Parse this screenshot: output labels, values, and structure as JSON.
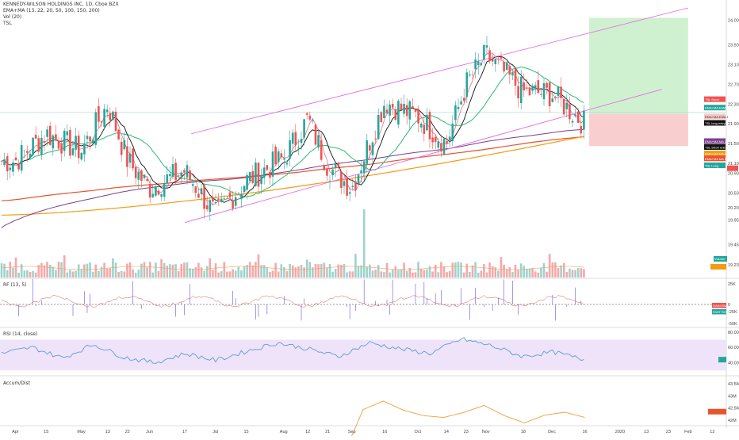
{
  "header": {
    "title": "KENNEDY-WILSON HOLDINGS INC, 1D, Cboe BZX",
    "ema_line": "EMA+MA (13, 22, 20, 50, 100, 150, 200)",
    "vol_line": "Vol (20)",
    "tsl_line": "TSL"
  },
  "panes": {
    "rf_label": "RF (13, 5)",
    "rsi_label": "RSI (14, close)",
    "ad_label": "Accum/Dist"
  },
  "colors": {
    "up": "#26a69a",
    "down": "#ef5350",
    "ema13": "#e0607a",
    "ema22": "#111111",
    "ma50": "#2eb87a",
    "ma100": "#7b3f8c",
    "ma150": "#f39c12",
    "ma200": "#e8522c",
    "channel": "#e36be6",
    "rsi": "#5b9bd5",
    "ad": "#f39c3c",
    "long_target": "#c8eec8",
    "long_stop": "#f8c6c6"
  },
  "chart_data": [
    {
      "type": "candlestick",
      "title": "KENNEDY-WILSON HOLDINGS INC, 1D, Cboe BZX",
      "x_tick_labels": [
        "Apr",
        "15",
        "May",
        "13",
        "22",
        "Jun",
        "17",
        "Jul",
        "15",
        "Aug",
        "12",
        "21",
        "Sep",
        "16",
        "Oct",
        "14",
        "23",
        "Nov",
        "18",
        "Dec",
        "16",
        "2020",
        "13",
        "23",
        "Feb",
        "12"
      ],
      "y_tick_labels": [
        "24.00",
        "23.50",
        "23.10",
        "22.70",
        "22.30",
        "21.90",
        "21.50",
        "21.10",
        "20.90",
        "20.50",
        "20.20",
        "19.95",
        "19.45",
        "19.23"
      ],
      "ylim": [
        19.3,
        24.25
      ],
      "price_series": [
        {
          "date": "2019-04-01",
          "close": 21.15
        },
        {
          "date": "2019-04-15",
          "close": 21.7
        },
        {
          "date": "2019-05-01",
          "close": 21.35
        },
        {
          "date": "2019-05-13",
          "close": 22.3
        },
        {
          "date": "2019-05-22",
          "close": 21.15
        },
        {
          "date": "2019-06-01",
          "close": 20.6
        },
        {
          "date": "2019-06-17",
          "close": 20.95
        },
        {
          "date": "2019-07-01",
          "close": 20.05
        },
        {
          "date": "2019-07-15",
          "close": 20.75
        },
        {
          "date": "2019-08-01",
          "close": 21.2
        },
        {
          "date": "2019-08-12",
          "close": 22.0
        },
        {
          "date": "2019-08-21",
          "close": 21.05
        },
        {
          "date": "2019-09-01",
          "close": 20.6
        },
        {
          "date": "2019-09-16",
          "close": 22.35
        },
        {
          "date": "2019-10-01",
          "close": 22.05
        },
        {
          "date": "2019-10-14",
          "close": 21.5
        },
        {
          "date": "2019-10-23",
          "close": 22.7
        },
        {
          "date": "2019-11-01",
          "close": 23.3
        },
        {
          "date": "2019-11-18",
          "close": 22.55
        },
        {
          "date": "2019-12-01",
          "close": 22.5
        },
        {
          "date": "2019-12-16",
          "close": 21.9
        }
      ],
      "price_tags": [
        "TSL Short",
        "EMA+MA EMA 2",
        "EMA+MA EMA 1",
        "TSL long entry",
        "EMA+MA MA 3",
        "TSL Short entry",
        "EMA+MA MA 4",
        "EMA+MA MA 5",
        "TSL Long"
      ],
      "channel": {
        "lower_start": {
          "date": "2019-06-17",
          "price": 19.9
        },
        "lower_end": {
          "date": "2019-12-16",
          "price": 22.0
        },
        "upper_start": {
          "date": "2019-06-20",
          "price": 21.7
        },
        "upper_end": {
          "date": "2020-02-01",
          "price": 24.25
        }
      },
      "long_position": {
        "entry": 22.1,
        "target": 24.05,
        "stop": 21.45,
        "start_date": "2019-12-18",
        "end_date": "2020-02-01"
      }
    },
    {
      "type": "bar",
      "title": "Volume",
      "note": "volume bars with 20-period moving average"
    },
    {
      "type": "line",
      "title": "RF (13, 5)",
      "y_tick_labels": [
        "25K",
        "0",
        "-25K",
        "-50K"
      ],
      "legend": [
        "GAIN ENA",
        "FAST RG"
      ]
    },
    {
      "type": "line",
      "title": "RSI (14, close)",
      "y_tick_labels": [
        "80.00",
        "60.00",
        "40.00"
      ],
      "band": [
        30,
        70
      ],
      "series": [
        {
          "name": "RSI",
          "values": [
            52,
            60,
            46,
            64,
            47,
            40,
            52,
            43,
            55,
            66,
            58,
            48,
            66,
            58,
            52,
            71,
            62,
            48,
            54,
            44
          ]
        }
      ]
    },
    {
      "type": "line",
      "title": "Accum/Dist",
      "y_tick_labels": [
        "43.5M",
        "43M",
        "42.5M",
        "42M"
      ],
      "series": [
        {
          "name": "Accum/Dist",
          "values": [
            40.5,
            42.5,
            42.9,
            42.5,
            42.2,
            42.1,
            42.4,
            42.6,
            42.3,
            42.0,
            42.1,
            42.2,
            42.2
          ]
        }
      ]
    }
  ]
}
